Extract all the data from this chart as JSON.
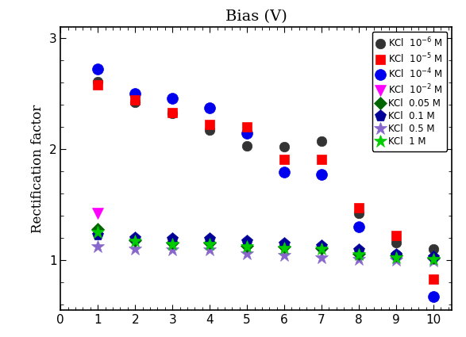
{
  "title": "Bias (V)",
  "ylabel": "Rectification factor",
  "xlim": [
    0,
    10.5
  ],
  "ylim": [
    0.55,
    3.1
  ],
  "xticks": [
    0,
    1,
    2,
    3,
    4,
    5,
    6,
    7,
    8,
    9,
    10
  ],
  "yticks": [
    1,
    2,
    3
  ],
  "series": [
    {
      "label": "KCl  $10^{-6}$ M",
      "x": [
        1,
        2,
        3,
        4,
        5,
        6,
        7,
        8,
        9,
        10
      ],
      "y": [
        2.61,
        2.42,
        2.32,
        2.17,
        2.03,
        2.02,
        2.07,
        1.42,
        1.16,
        1.1
      ],
      "color": "#333333",
      "marker": "o",
      "markersize": 9,
      "markeredge": "none",
      "zorder": 4
    },
    {
      "label": "KCl  $10^{-5}$ M",
      "x": [
        1,
        2,
        3,
        4,
        5,
        6,
        7,
        8,
        9,
        10
      ],
      "y": [
        2.58,
        2.44,
        2.33,
        2.22,
        2.2,
        1.91,
        1.91,
        1.47,
        1.22,
        0.83
      ],
      "color": "red",
      "marker": "s",
      "markersize": 9,
      "markeredge": "none",
      "zorder": 4
    },
    {
      "label": "KCl  $10^{-4}$ M",
      "x": [
        1,
        2,
        3,
        4,
        5,
        6,
        7,
        8,
        9,
        10
      ],
      "y": [
        2.72,
        2.5,
        2.46,
        2.37,
        2.14,
        1.79,
        1.77,
        1.3,
        1.04,
        0.67
      ],
      "color": "#0000ee",
      "marker": "o",
      "markersize": 10,
      "markeredge": "none",
      "zorder": 3
    },
    {
      "label": "KCl  $10^{-2}$ M",
      "x": [
        1
      ],
      "y": [
        1.42
      ],
      "color": "#ff00ff",
      "marker": "v",
      "markersize": 10,
      "markeredge": "none",
      "zorder": 4
    },
    {
      "label": "KCl  0.05 M",
      "x": [
        1,
        2,
        3,
        4,
        5,
        6,
        7,
        8,
        9,
        10
      ],
      "y": [
        1.28,
        1.18,
        1.16,
        1.16,
        1.13,
        1.12,
        1.11,
        1.06,
        1.04,
        1.02
      ],
      "color": "#006600",
      "marker": "D",
      "markersize": 8,
      "markeredge": "none",
      "zorder": 5
    },
    {
      "label": "KCl  0.1 M",
      "x": [
        1,
        2,
        3,
        4,
        5,
        6,
        7,
        8,
        9,
        10
      ],
      "y": [
        1.23,
        1.2,
        1.19,
        1.19,
        1.17,
        1.15,
        1.13,
        1.09,
        1.05,
        1.03
      ],
      "color": "#000099",
      "marker": "p",
      "markersize": 11,
      "markeredge": "none",
      "zorder": 5
    },
    {
      "label": "KCl  0.5 M",
      "x": [
        1,
        2,
        3,
        4,
        5,
        6,
        7,
        8,
        9,
        10
      ],
      "y": [
        1.12,
        1.1,
        1.09,
        1.09,
        1.06,
        1.04,
        1.02,
        1.01,
        1.0,
        0.99
      ],
      "color": "#8866cc",
      "marker": "*",
      "markersize": 12,
      "markeredge": "none",
      "zorder": 4
    },
    {
      "label": "KCl  1 M",
      "x": [
        1,
        2,
        3,
        4,
        5,
        6,
        7,
        8,
        9,
        10
      ],
      "y": [
        1.25,
        1.17,
        1.14,
        1.14,
        1.12,
        1.11,
        1.1,
        1.05,
        1.02,
        1.01
      ],
      "color": "#00cc00",
      "marker": "*",
      "markersize": 12,
      "markeredge": "none",
      "zorder": 5
    }
  ]
}
